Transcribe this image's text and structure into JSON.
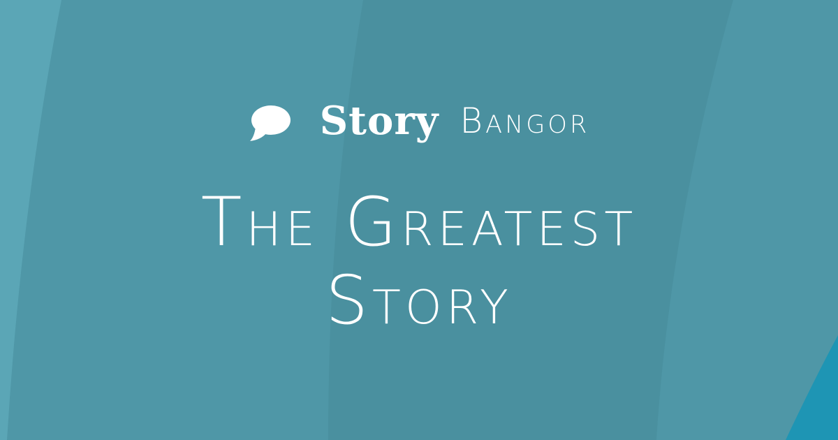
{
  "brand": {
    "icon": "speech-bubble-icon",
    "name_primary": "Story",
    "name_secondary": "Bangor"
  },
  "headline": {
    "line1": "The Greatest",
    "line2": "Story"
  },
  "colors": {
    "background": "#4f97a7",
    "background_dark": "#4a8f9f",
    "background_light": "#5aa6b6",
    "accent_corner": "#1e95b4",
    "text": "#ffffff"
  }
}
